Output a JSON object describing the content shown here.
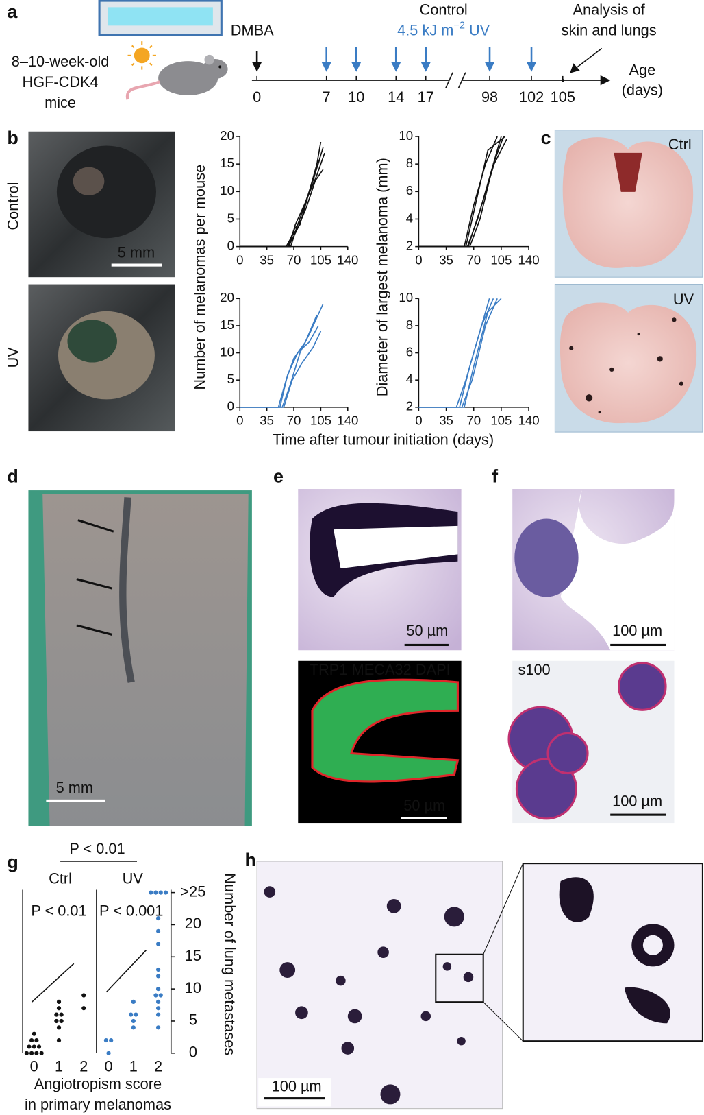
{
  "labels": {
    "a": "a",
    "b": "b",
    "c": "c",
    "d": "d",
    "e": "e",
    "f": "f",
    "g": "g",
    "h": "h"
  },
  "timeline": {
    "mice": [
      "8–10-week-old",
      "HGF-CDK4",
      "mice"
    ],
    "dmba": "DMBA",
    "control": "Control",
    "uv_dose": "4.5 kJ m",
    "uv_exponent": "−2",
    "uv_unit": " UV",
    "analysis": [
      "Analysis of",
      "skin and lungs"
    ],
    "axis_label": [
      "Age",
      "(days)"
    ],
    "segments": [
      [
        0,
        17
      ],
      [
        98,
        105
      ]
    ],
    "ticks": [
      0,
      7,
      10,
      14,
      17,
      98,
      102,
      105
    ],
    "dmba_day": 0,
    "uv_days": [
      7,
      10,
      14,
      17,
      98,
      102
    ],
    "analysis_day": 105
  },
  "panel_b": {
    "row_labels": [
      "Control",
      "UV"
    ],
    "scale_bar": "5 mm",
    "y_labels": [
      "Number of melanomas per mouse",
      "Diameter of largest melanoma (mm)"
    ],
    "x_label": "Time after tumour initiation (days)",
    "charts": [
      {
        "type": "line",
        "color": "#111111",
        "xlim": [
          0,
          140
        ],
        "xticks": [
          0,
          35,
          70,
          105,
          140
        ],
        "ylim": [
          0,
          20
        ],
        "yticks": [
          0,
          5,
          10,
          15,
          20
        ],
        "series": [
          {
            "x": [
              0,
              62,
              70,
              80,
              90,
              100,
              105
            ],
            "values": [
              0,
              0,
              3,
              5,
              10,
              15,
              19
            ]
          },
          {
            "x": [
              0,
              64,
              72,
              85,
              95,
              108
            ],
            "values": [
              0,
              0,
              4,
              8,
              12,
              18
            ]
          },
          {
            "x": [
              0,
              60,
              68,
              78,
              92,
              104
            ],
            "values": [
              0,
              0,
              2,
              4,
              11,
              16
            ]
          },
          {
            "x": [
              0,
              66,
              75,
              88,
              100,
              110
            ],
            "values": [
              0,
              0,
              4,
              9,
              13,
              17
            ]
          },
          {
            "x": [
              0,
              63,
              74,
              86,
              98,
              108
            ],
            "values": [
              0,
              0,
              3,
              7,
              12,
              14
            ]
          }
        ]
      },
      {
        "type": "line",
        "color": "#111111",
        "xlim": [
          0,
          140
        ],
        "xticks": [
          0,
          35,
          70,
          105,
          140
        ],
        "ylim": [
          2,
          10
        ],
        "yticks": [
          2,
          4,
          6,
          8,
          10
        ],
        "series": [
          {
            "x": [
              0,
              58,
              70,
              85,
              100
            ],
            "values": [
              2,
              2,
              5,
              8,
              10
            ]
          },
          {
            "x": [
              0,
              62,
              75,
              90,
              105
            ],
            "values": [
              2,
              2,
              4,
              7,
              10
            ]
          },
          {
            "x": [
              0,
              60,
              72,
              88,
              110
            ],
            "values": [
              2,
              2,
              5,
              9,
              10
            ]
          },
          {
            "x": [
              0,
              65,
              78,
              95,
              108
            ],
            "values": [
              2,
              2,
              4,
              8,
              10
            ]
          },
          {
            "x": [
              0,
              63,
              80,
              96,
              112
            ],
            "values": [
              2,
              2,
              5,
              8,
              9.8
            ]
          }
        ]
      },
      {
        "type": "line",
        "color": "#3a7cc4",
        "xlim": [
          0,
          140
        ],
        "xticks": [
          0,
          35,
          70,
          105,
          140
        ],
        "ylim": [
          0,
          20
        ],
        "yticks": [
          0,
          5,
          10,
          15,
          20
        ],
        "series": [
          {
            "x": [
              0,
              50,
              60,
              70,
              85,
              100
            ],
            "values": [
              0,
              0,
              5,
              9,
              12,
              17
            ]
          },
          {
            "x": [
              0,
              55,
              65,
              78,
              92,
              108
            ],
            "values": [
              0,
              0,
              4,
              10,
              14,
              19
            ]
          },
          {
            "x": [
              0,
              52,
              62,
              75,
              90,
              102
            ],
            "values": [
              0,
              0,
              6,
              10,
              12,
              15
            ]
          },
          {
            "x": [
              0,
              57,
              68,
              80,
              95,
              105
            ],
            "values": [
              0,
              0,
              5,
              8,
              11,
              14
            ]
          }
        ]
      },
      {
        "type": "line",
        "color": "#3a7cc4",
        "xlim": [
          0,
          140
        ],
        "xticks": [
          0,
          35,
          70,
          105,
          140
        ],
        "ylim": [
          2,
          10
        ],
        "yticks": [
          2,
          4,
          6,
          8,
          10
        ],
        "series": [
          {
            "x": [
              0,
              48,
              60,
              75,
              90
            ],
            "values": [
              2,
              2,
              4,
              7,
              10
            ]
          },
          {
            "x": [
              0,
              52,
              65,
              80,
              95
            ],
            "values": [
              2,
              2,
              5,
              8,
              10
            ]
          },
          {
            "x": [
              0,
              55,
              68,
              85,
              100
            ],
            "values": [
              2,
              2,
              4,
              8,
              10
            ]
          },
          {
            "x": [
              0,
              58,
              70,
              88,
              105
            ],
            "values": [
              2,
              2,
              5,
              9,
              10
            ]
          }
        ]
      }
    ]
  },
  "panel_c": {
    "labels": [
      "Ctrl",
      "UV"
    ]
  },
  "panel_d": {
    "scale_bar": "5 mm"
  },
  "panel_e": {
    "scale_bars": [
      "50 µm",
      "50 µm"
    ],
    "stains": [
      {
        "name": "TRP1",
        "color": "#22a83c"
      },
      {
        "name": "MECA32",
        "color": "#e0262a"
      },
      {
        "name": "DAPI",
        "color": "#2a5fd0"
      }
    ]
  },
  "panel_f": {
    "scale_bars": [
      "100 µm",
      "100 µm"
    ],
    "stain": "s100"
  },
  "panel_g": {
    "type": "scatter",
    "title": "P < 0.01",
    "xticks": [
      0,
      1,
      2
    ],
    "ylim": [
      0,
      25
    ],
    "yticks": [
      0,
      5,
      10,
      15,
      20,
      {
        "value": 25,
        "label": ">25"
      }
    ],
    "y_label": "Number of lung metastases",
    "x_label": [
      "Angiotropism score",
      "in primary melanomas"
    ],
    "groups": [
      {
        "name": "Ctrl",
        "color": "#111111",
        "p_value": "P < 0.01",
        "x": [
          0,
          0,
          0,
          0,
          0,
          0,
          0,
          0,
          0,
          0,
          1,
          1,
          1,
          1,
          1,
          1,
          1,
          1,
          2,
          2
        ],
        "values": [
          0,
          0,
          0,
          0,
          1,
          1,
          1,
          2,
          2,
          3,
          2,
          4,
          5,
          5,
          6,
          6,
          7,
          8,
          7,
          9
        ]
      },
      {
        "name": "UV",
        "color": "#3a7cc4",
        "p_value": "P < 0.001",
        "x": [
          0,
          0,
          0,
          1,
          1,
          1,
          1,
          1,
          2,
          2,
          2,
          2,
          2,
          2,
          2,
          2,
          2,
          2,
          2,
          2,
          2,
          2,
          2,
          2
        ],
        "values": [
          0,
          2,
          2,
          4,
          5,
          6,
          6,
          8,
          4,
          6,
          7,
          8,
          9,
          9,
          10,
          12,
          13,
          17,
          19,
          21,
          25,
          25,
          25,
          25
        ]
      }
    ]
  },
  "panel_h": {
    "scale_bar": "100 µm"
  }
}
